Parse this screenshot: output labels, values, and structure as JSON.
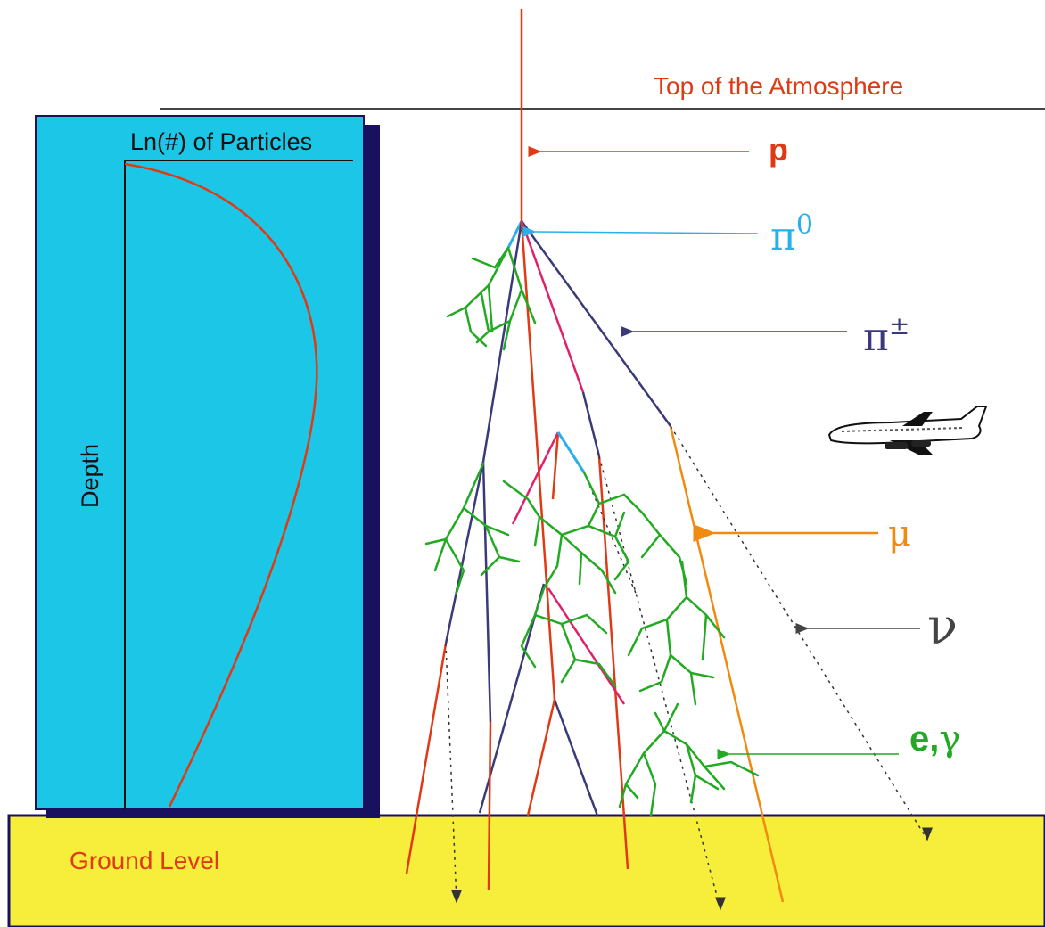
{
  "diagram": {
    "top_label": "Top of the Atmosphere",
    "ground_label": "Ground Level",
    "inset": {
      "x_label": "Ln(#) of Particles",
      "y_label": "Depth"
    },
    "particles": {
      "proton": "p",
      "pi0": "π",
      "pi0_sup": "0",
      "pi_charged": "π",
      "pi_charged_sup": "±",
      "muon": "μ",
      "neutrino": "ν",
      "em": "e",
      "em_sep": ",",
      "em_gamma": "γ"
    },
    "icons": [
      "airplane-icon"
    ]
  },
  "colors": {
    "sky_panel": "#1cc6e6",
    "panel_shadow": "#1a1060",
    "ground": "#f6ee3a",
    "proton": "#e03a14",
    "pi0": "#2ab0e8",
    "pi_charged": "#3a3a78",
    "pink": "#e0206a",
    "muon": "#f08a10",
    "neutrino": "#444444",
    "em": "#22aa22",
    "hadron_red": "#e03a14"
  }
}
